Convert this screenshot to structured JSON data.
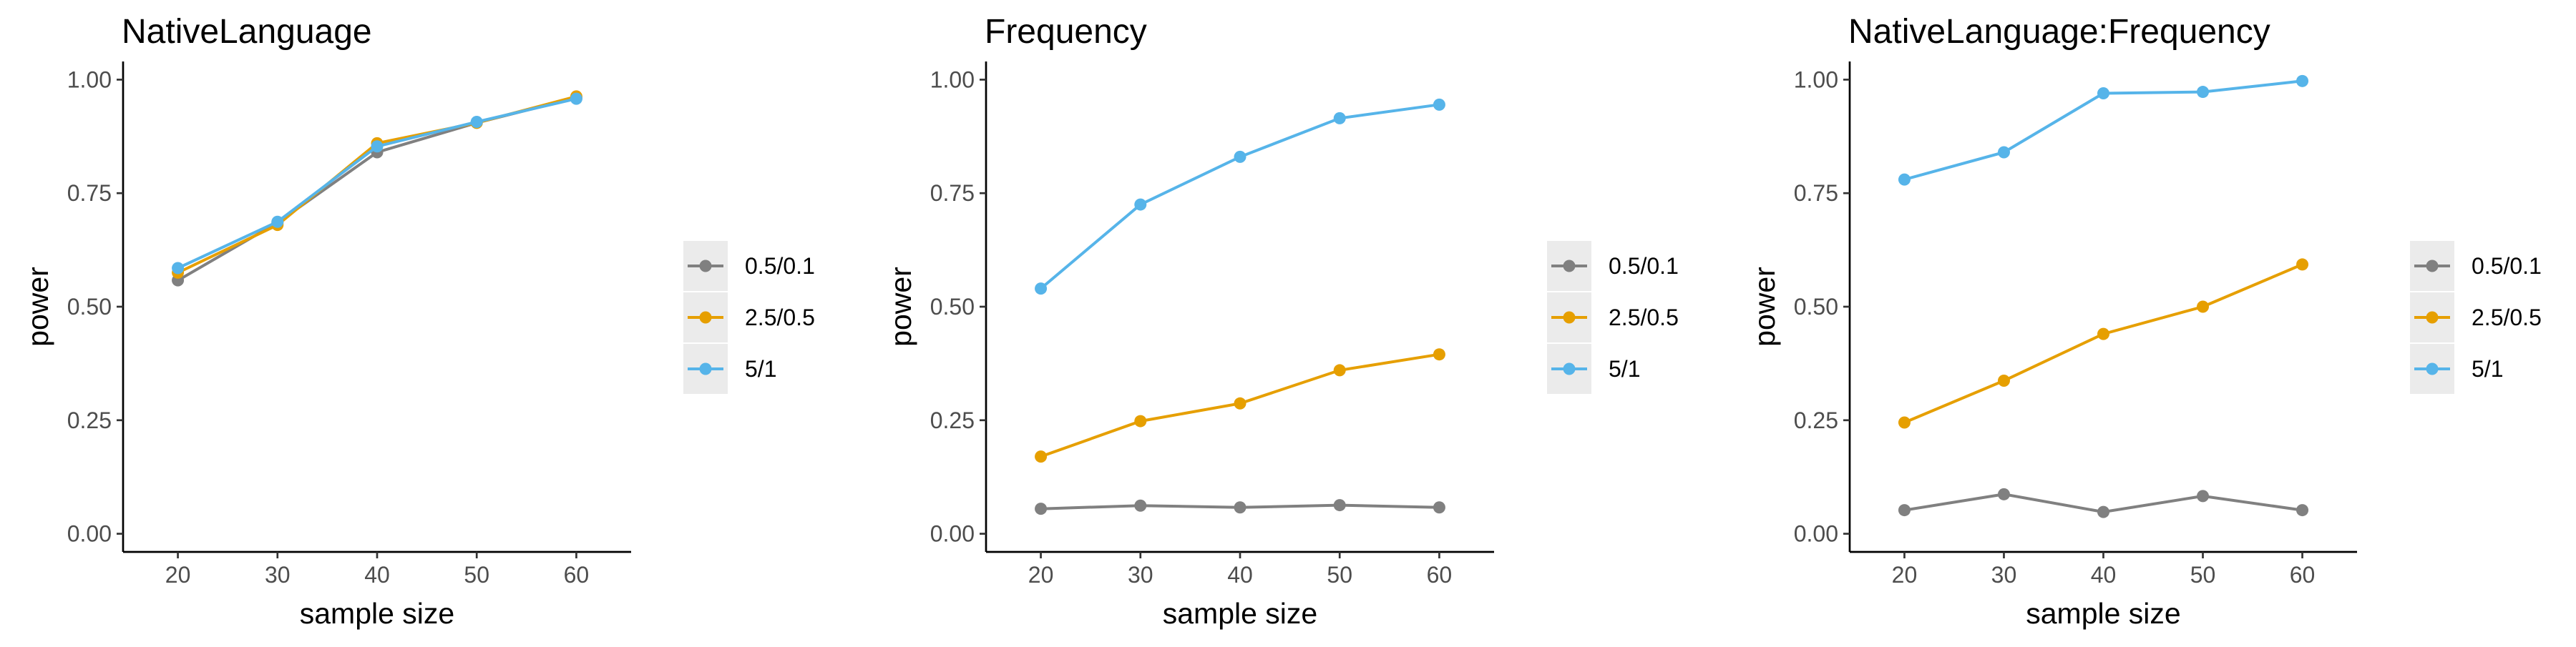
{
  "colors": {
    "series": [
      "#808080",
      "#E69F00",
      "#56B4E9"
    ],
    "axis": "#000000",
    "tick_text": "#4d4d4d",
    "legend_key_bg": "#ebebeb"
  },
  "chart_data": [
    {
      "type": "line",
      "title": "NativeLanguage",
      "xlabel": "sample size",
      "ylabel": "power",
      "x": [
        20,
        30,
        40,
        50,
        60
      ],
      "xticks": [
        "20",
        "30",
        "40",
        "50",
        "60"
      ],
      "yticks": [
        "0.00",
        "0.25",
        "0.50",
        "0.75",
        "1.00"
      ],
      "ylim": [
        -0.04,
        1.04
      ],
      "xlim": [
        14.5,
        65.5
      ],
      "grid": false,
      "legend": "right",
      "series": [
        {
          "name": "0.5/0.1",
          "values": [
            0.558,
            0.685,
            0.84,
            0.905,
            0.96
          ]
        },
        {
          "name": "2.5/0.5",
          "values": [
            0.575,
            0.68,
            0.86,
            0.905,
            0.963
          ]
        },
        {
          "name": "5/1",
          "values": [
            0.585,
            0.687,
            0.853,
            0.907,
            0.958
          ]
        }
      ]
    },
    {
      "type": "line",
      "title": "Frequency",
      "xlabel": "sample size",
      "ylabel": "power",
      "x": [
        20,
        30,
        40,
        50,
        60
      ],
      "xticks": [
        "20",
        "30",
        "40",
        "50",
        "60"
      ],
      "yticks": [
        "0.00",
        "0.25",
        "0.50",
        "0.75",
        "1.00"
      ],
      "ylim": [
        -0.04,
        1.04
      ],
      "xlim": [
        14.5,
        65.5
      ],
      "grid": false,
      "legend": "right",
      "series": [
        {
          "name": "0.5/0.1",
          "values": [
            0.055,
            0.062,
            0.058,
            0.063,
            0.058
          ]
        },
        {
          "name": "2.5/0.5",
          "values": [
            0.17,
            0.248,
            0.287,
            0.36,
            0.395
          ]
        },
        {
          "name": "5/1",
          "values": [
            0.54,
            0.725,
            0.83,
            0.915,
            0.945
          ]
        }
      ]
    },
    {
      "type": "line",
      "title": "NativeLanguage:Frequency",
      "xlabel": "sample size",
      "ylabel": "power",
      "x": [
        20,
        30,
        40,
        50,
        60
      ],
      "xticks": [
        "20",
        "30",
        "40",
        "50",
        "60"
      ],
      "yticks": [
        "0.00",
        "0.25",
        "0.50",
        "0.75",
        "1.00"
      ],
      "ylim": [
        -0.04,
        1.04
      ],
      "xlim": [
        14.5,
        65.5
      ],
      "grid": false,
      "legend": "right",
      "series": [
        {
          "name": "0.5/0.1",
          "values": [
            0.052,
            0.087,
            0.048,
            0.083,
            0.052
          ]
        },
        {
          "name": "2.5/0.5",
          "values": [
            0.245,
            0.337,
            0.44,
            0.5,
            0.593
          ]
        },
        {
          "name": "5/1",
          "values": [
            0.78,
            0.84,
            0.97,
            0.973,
            0.997
          ]
        }
      ]
    }
  ]
}
